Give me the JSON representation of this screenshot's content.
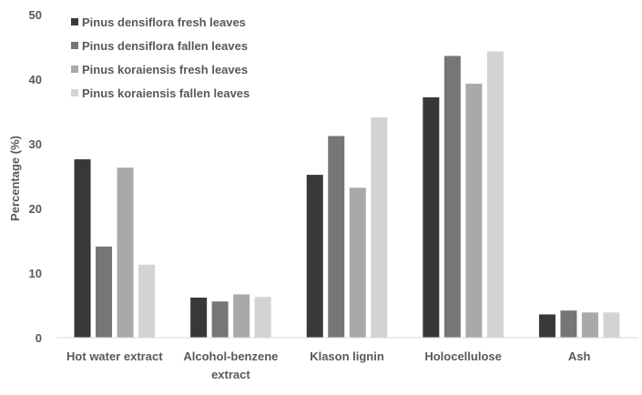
{
  "chart_data": {
    "type": "bar",
    "title": "",
    "xlabel": "",
    "ylabel": "Percentage (%)",
    "ylim": [
      0,
      50
    ],
    "yticks": [
      0,
      10,
      20,
      30,
      40,
      50
    ],
    "grid": false,
    "legend_position": "top-left",
    "categories": [
      [
        "Hot water extract"
      ],
      [
        "Alcohol-benzene",
        "extract"
      ],
      [
        "Klason lignin"
      ],
      [
        "Holocellulose"
      ],
      [
        "Ash"
      ]
    ],
    "series": [
      {
        "name": "Pinus densiflora fresh leaves",
        "color": "#383838",
        "values": [
          27.6,
          6.2,
          25.2,
          37.2,
          3.6
        ]
      },
      {
        "name": "Pinus densiflora fallen leaves",
        "color": "#767676",
        "values": [
          14.1,
          5.6,
          31.2,
          43.6,
          4.2
        ]
      },
      {
        "name": "Pinus koraiensis fresh leaves",
        "color": "#a9a9a9",
        "values": [
          26.3,
          6.7,
          23.2,
          39.3,
          3.9
        ]
      },
      {
        "name": "Pinus koraiensis fallen leaves",
        "color": "#d3d3d3",
        "values": [
          11.3,
          6.3,
          34.1,
          44.3,
          3.9
        ]
      }
    ]
  }
}
